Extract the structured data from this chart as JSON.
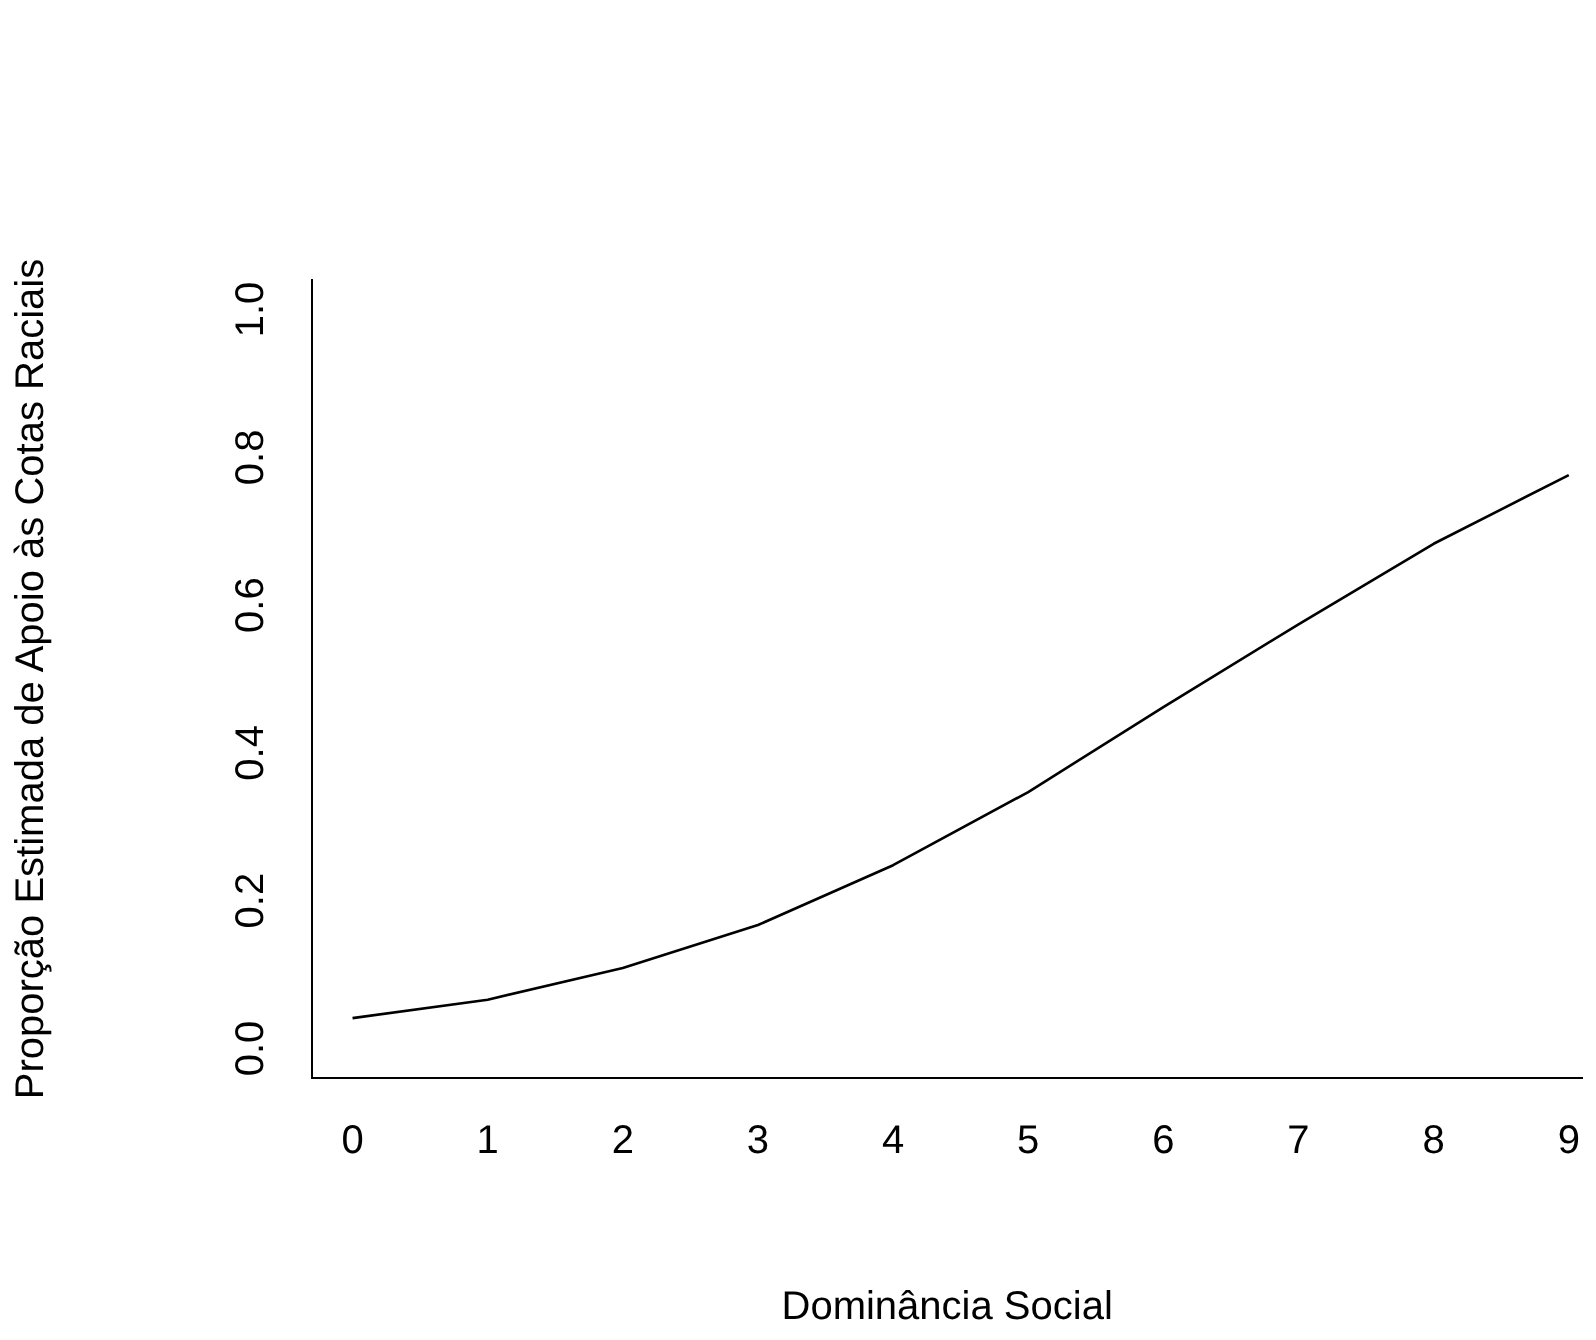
{
  "chart_data": {
    "type": "line",
    "xlabel": "Dominância Social",
    "ylabel": "Proporção Estimada de Apoio às Cotas Raciais",
    "x": [
      0,
      1,
      2,
      3,
      4,
      5,
      6,
      7,
      8,
      9
    ],
    "series": [
      {
        "color": "#000000",
        "values": [
          0.041,
          0.066,
          0.109,
          0.167,
          0.248,
          0.347,
          0.462,
          0.574,
          0.683,
          0.776
        ]
      }
    ],
    "xlim": [
      -0.3,
      9.1
    ],
    "xticks": [
      0,
      1,
      2,
      3,
      4,
      5,
      6,
      7,
      8,
      9
    ],
    "ylim": [
      -0.04,
      1.04
    ],
    "yticks": [
      {
        "value": 0,
        "label": "0.0"
      },
      {
        "value": 0.2,
        "label": "0.2"
      },
      {
        "value": 0.4,
        "label": "0.4"
      },
      {
        "value": 0.6,
        "label": "0.6"
      },
      {
        "value": 0.8,
        "label": "0.8"
      },
      {
        "value": 1,
        "label": "1.0"
      }
    ],
    "grid": false,
    "legend": false,
    "marker": "none",
    "line_style": "solid"
  }
}
